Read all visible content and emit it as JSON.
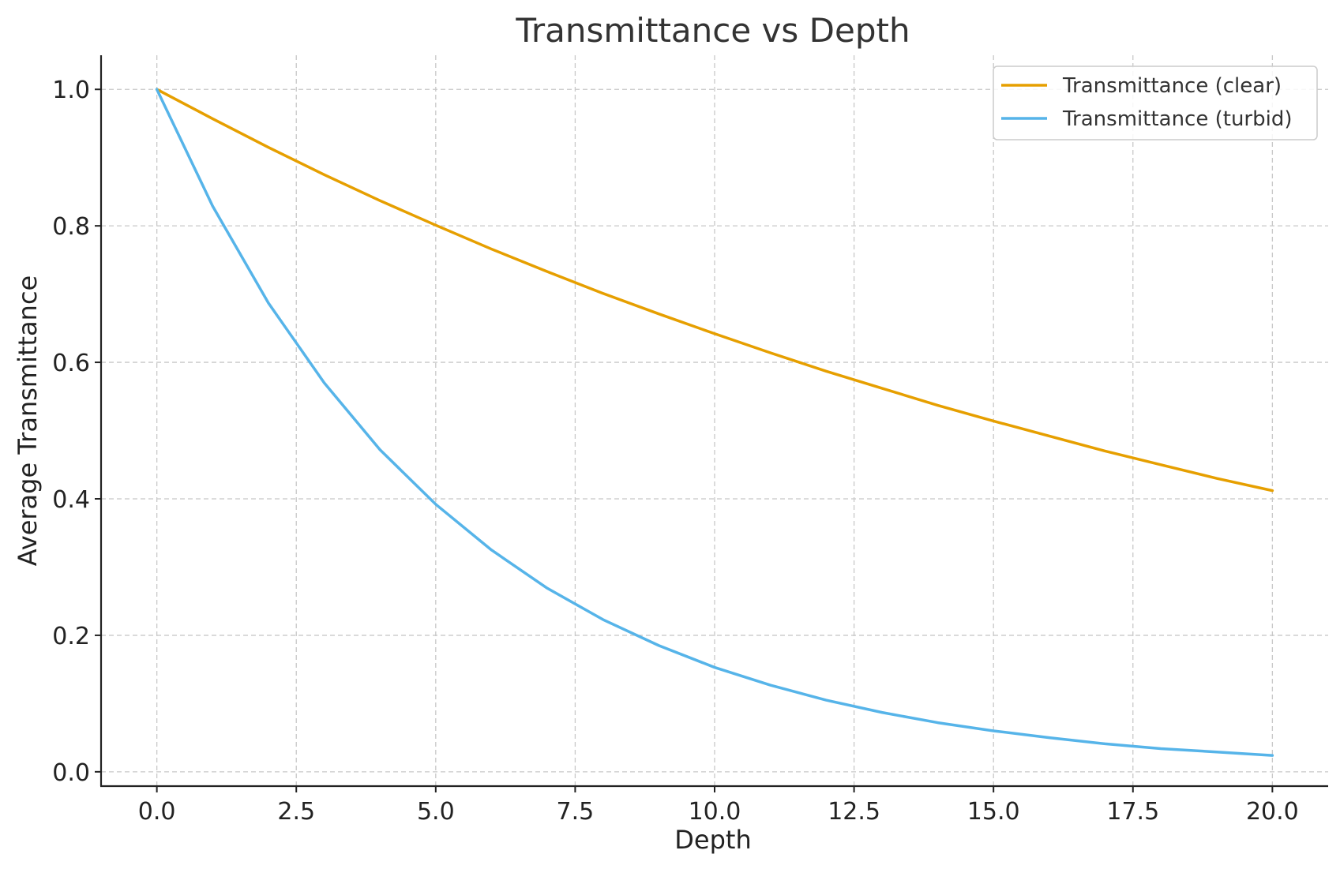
{
  "chart_data": {
    "type": "line",
    "title": "Transmittance vs Depth",
    "xlabel": "Depth",
    "ylabel": "Average Transmittance",
    "xlim": [
      -1.0,
      21.0
    ],
    "ylim": [
      -0.021,
      1.05
    ],
    "x_ticks": [
      0.0,
      2.5,
      5.0,
      7.5,
      10.0,
      12.5,
      15.0,
      17.5,
      20.0
    ],
    "x_tick_labels": [
      "0.0",
      "2.5",
      "5.0",
      "7.5",
      "10.0",
      "12.5",
      "15.0",
      "17.5",
      "20.0"
    ],
    "y_ticks": [
      0.0,
      0.2,
      0.4,
      0.6,
      0.8,
      1.0
    ],
    "y_tick_labels": [
      "0.0",
      "0.2",
      "0.4",
      "0.6",
      "0.8",
      "1.0"
    ],
    "grid": true,
    "legend_position": "top-right",
    "x": [
      0,
      1,
      2,
      3,
      4,
      5,
      6,
      7,
      8,
      9,
      10,
      11,
      12,
      13,
      14,
      15,
      16,
      17,
      18,
      19,
      20
    ],
    "series": [
      {
        "name": "Transmittance (clear)",
        "color": "#E69F00",
        "values": [
          1.0,
          0.957,
          0.915,
          0.875,
          0.837,
          0.801,
          0.766,
          0.733,
          0.701,
          0.671,
          0.642,
          0.614,
          0.587,
          0.562,
          0.537,
          0.514,
          0.492,
          0.47,
          0.45,
          0.43,
          0.412
        ]
      },
      {
        "name": "Transmittance (turbid)",
        "color": "#56B4E9",
        "values": [
          1.0,
          0.829,
          0.687,
          0.57,
          0.472,
          0.392,
          0.325,
          0.269,
          0.223,
          0.185,
          0.153,
          0.127,
          0.105,
          0.087,
          0.072,
          0.06,
          0.05,
          0.041,
          0.034,
          0.029,
          0.024
        ]
      }
    ]
  }
}
